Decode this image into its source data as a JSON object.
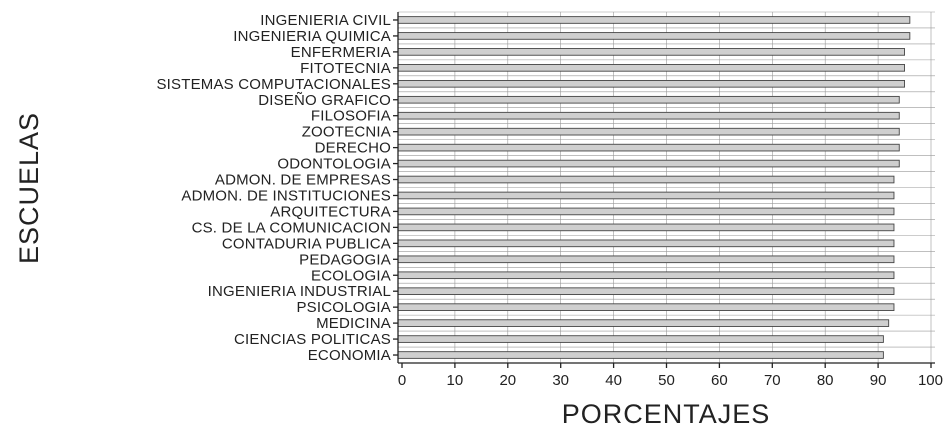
{
  "chart_data": {
    "type": "bar",
    "orientation": "horizontal",
    "categories": [
      "INGENIERIA CIVIL",
      "INGENIERIA QUIMICA",
      "ENFERMERIA",
      "FITOTECNIA",
      "SISTEMAS COMPUTACIONALES",
      "DISEÑO GRAFICO",
      "FILOSOFIA",
      "ZOOTECNIA",
      "DERECHO",
      "ODONTOLOGIA",
      "ADMON. DE EMPRESAS",
      "ADMON. DE INSTITUCIONES",
      "ARQUITECTURA",
      "CS. DE LA COMUNICACION",
      "CONTADURIA PUBLICA",
      "PEDAGOGIA",
      "ECOLOGIA",
      "INGENIERIA INDUSTRIAL",
      "PSICOLOGIA",
      "MEDICINA",
      "CIENCIAS POLITICAS",
      "ECONOMIA"
    ],
    "values": [
      96,
      96,
      95,
      95,
      95,
      94,
      94,
      94,
      94,
      94,
      93,
      93,
      93,
      93,
      93,
      93,
      93,
      93,
      93,
      92,
      91,
      91
    ],
    "xlabel": "PORCENTAJES",
    "ylabel": "ESCUELAS",
    "xlim": [
      0,
      100
    ],
    "xticks": [
      "0",
      "10",
      "20",
      "30",
      "40",
      "50",
      "60",
      "70",
      "80",
      "90",
      "100"
    ],
    "grid": true
  }
}
